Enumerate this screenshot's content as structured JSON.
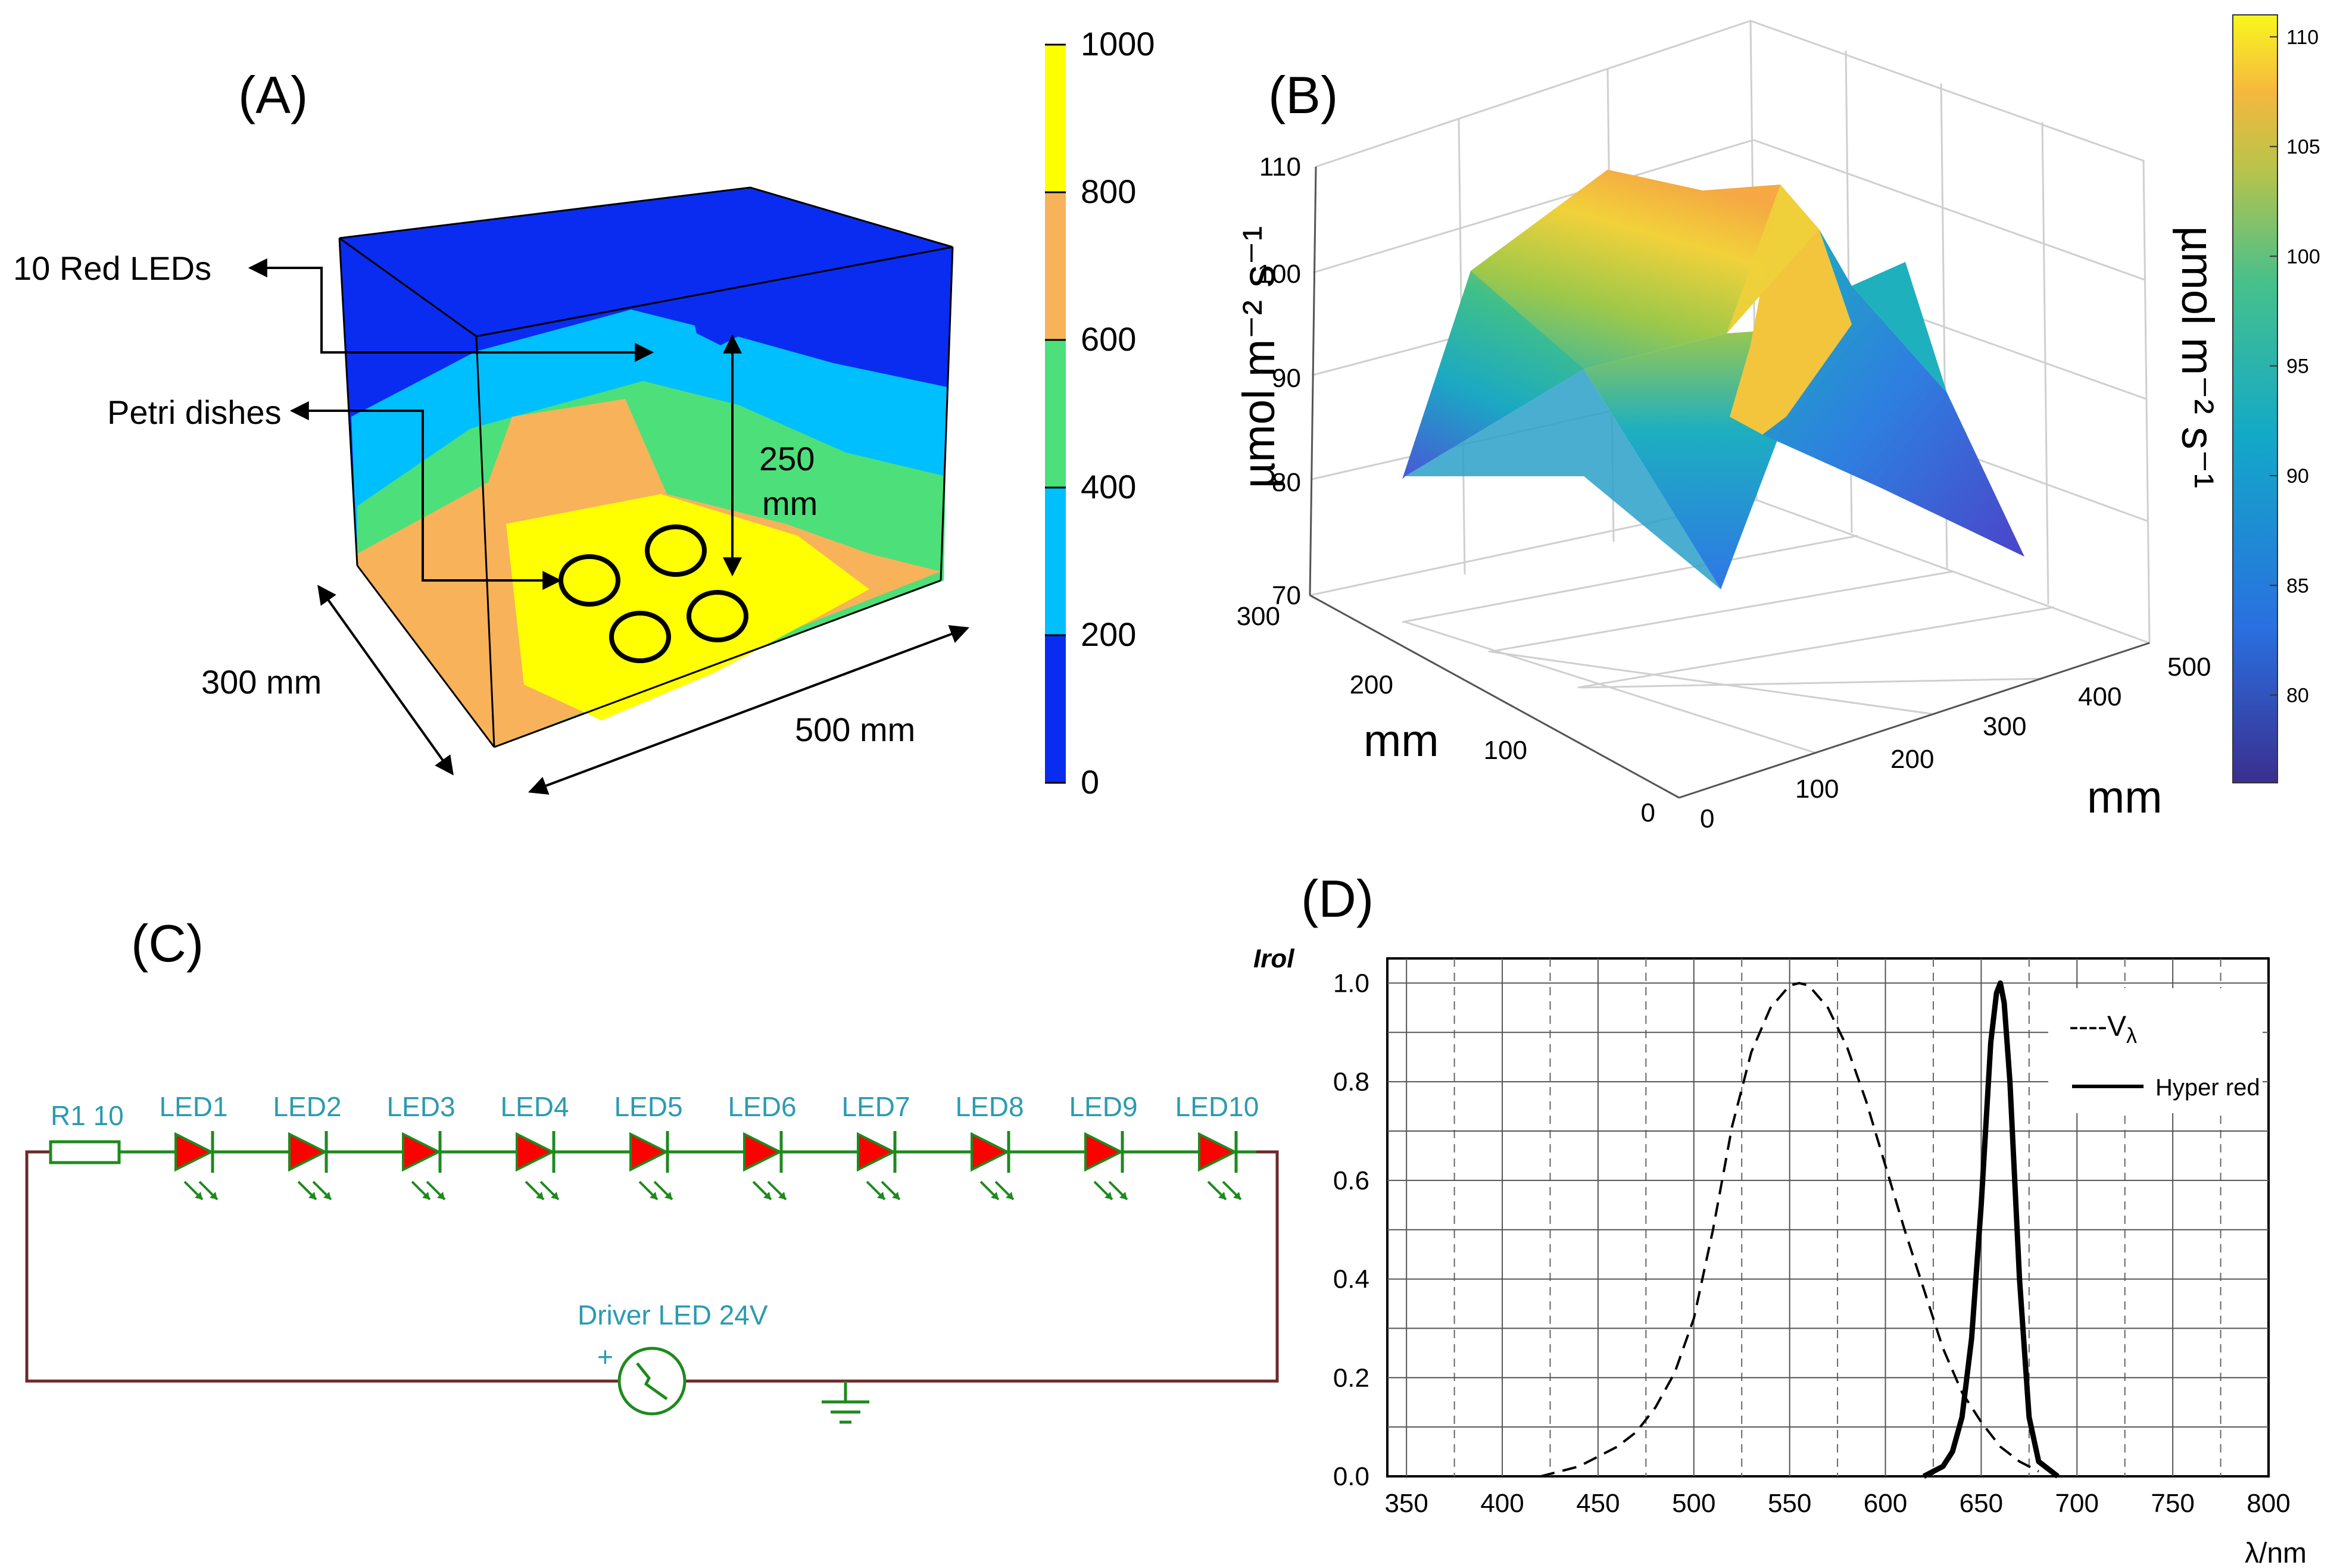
{
  "panel_a": {
    "label": "(A)",
    "leds_label": "10 Red LEDs",
    "petri_label": "Petri dishes",
    "height_label_1": "250",
    "height_label_2": "mm",
    "depth_label": "300 mm",
    "width_label": "500 mm",
    "colorbar": {
      "ticks": [
        "0",
        "200",
        "400",
        "600",
        "800",
        "1000"
      ],
      "colors": [
        "#0a2cf0",
        "#00bfff",
        "#4ddf7a",
        "#f7b25a",
        "#ffff00"
      ]
    }
  },
  "panel_b": {
    "label": "(B)",
    "zlabel": "µmol m⁻² s⁻¹",
    "colorbar_label": "µmol m⁻² s⁻¹",
    "z_ticks": [
      "70",
      "80",
      "90",
      "100",
      "110"
    ],
    "y_ticks": [
      "0",
      "100",
      "200",
      "300"
    ],
    "x_ticks": [
      "0",
      "100",
      "200",
      "300",
      "400",
      "500"
    ],
    "y_axis_label": "mm",
    "x_axis_label": "mm",
    "colorbar_ticks": [
      "80",
      "85",
      "90",
      "95",
      "100",
      "105",
      "110"
    ]
  },
  "panel_c": {
    "label": "(C)",
    "resistor": "R1 10",
    "leds": [
      "LED1",
      "LED2",
      "LED3",
      "LED4",
      "LED5",
      "LED6",
      "LED7",
      "LED8",
      "LED9",
      "LED10"
    ],
    "driver": "Driver LED 24V",
    "plus": "+"
  },
  "panel_d": {
    "label": "(D)",
    "ylabel": "Irol",
    "xlabel": "λ/nm",
    "legend_v": "----V",
    "legend_v_sub": "λ",
    "legend_red": "Hyper red"
  },
  "chart_data": {
    "type": "line",
    "xlim": [
      340,
      800
    ],
    "ylim": [
      0,
      1.05
    ],
    "x_ticks": [
      350,
      400,
      450,
      500,
      550,
      600,
      650,
      700,
      750,
      800
    ],
    "y_ticks": [
      "0.0",
      "0.2",
      "0.4",
      "0.6",
      "0.8",
      "1.0"
    ],
    "grid": true,
    "legend_position": "top-right",
    "series": [
      {
        "name": "Vλ",
        "style": "dashed",
        "x": [
          420,
          440,
          460,
          470,
          480,
          490,
          500,
          510,
          520,
          530,
          540,
          550,
          555,
          560,
          570,
          580,
          590,
          600,
          610,
          620,
          630,
          640,
          650,
          660,
          670,
          680
        ],
        "y": [
          0.0,
          0.02,
          0.06,
          0.09,
          0.14,
          0.21,
          0.32,
          0.5,
          0.71,
          0.86,
          0.95,
          0.995,
          1.0,
          0.995,
          0.95,
          0.87,
          0.76,
          0.63,
          0.5,
          0.38,
          0.26,
          0.17,
          0.11,
          0.06,
          0.03,
          0.01
        ]
      },
      {
        "name": "Hyper red",
        "style": "solid",
        "x": [
          620,
          630,
          635,
          640,
          645,
          650,
          655,
          658,
          660,
          662,
          665,
          670,
          675,
          680,
          690
        ],
        "y": [
          0.0,
          0.02,
          0.05,
          0.12,
          0.28,
          0.55,
          0.88,
          0.98,
          1.0,
          0.96,
          0.8,
          0.4,
          0.12,
          0.03,
          0.0
        ]
      }
    ]
  }
}
